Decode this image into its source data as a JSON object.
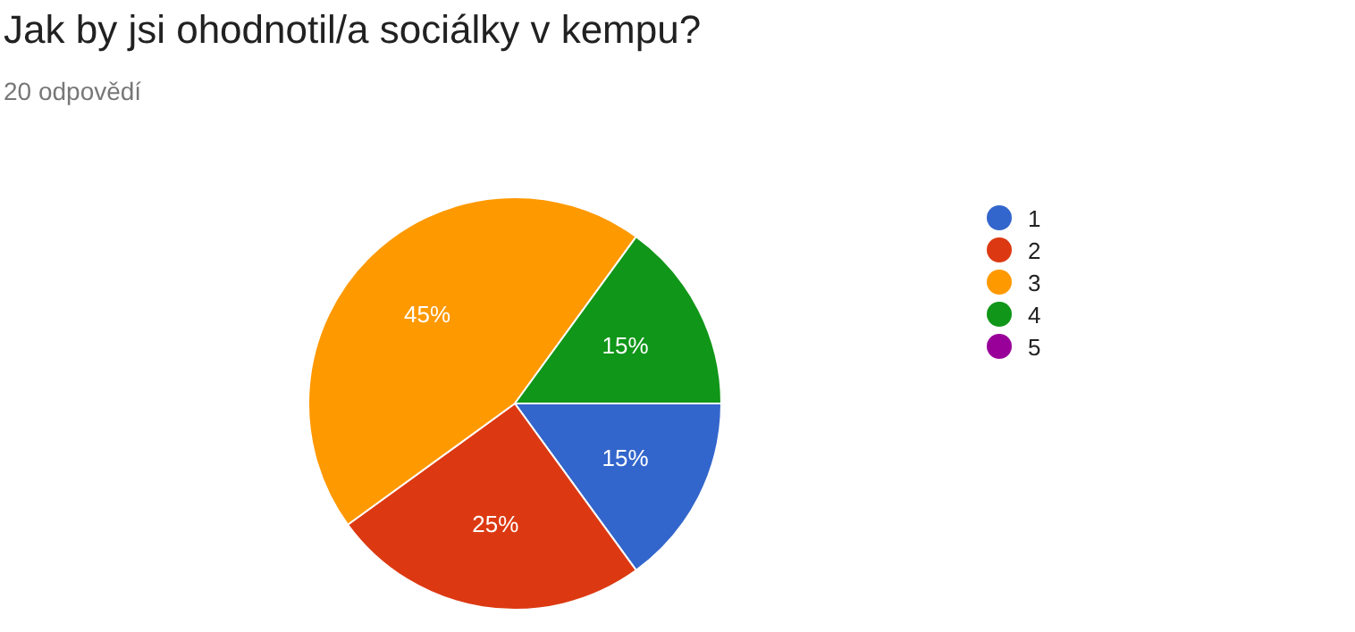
{
  "chart_data": {
    "type": "pie",
    "title": "Jak by jsi ohodnotil/a sociálky v kempu?",
    "subtitle": "20 odpovědí",
    "categories": [
      "1",
      "2",
      "3",
      "4",
      "5"
    ],
    "values": [
      15,
      25,
      45,
      15,
      0
    ],
    "colors": [
      "#3366cc",
      "#dc3912",
      "#ff9900",
      "#109618",
      "#990099"
    ],
    "value_labels": [
      "15%",
      "25%",
      "45%",
      "15%",
      null
    ],
    "legend": "right"
  }
}
